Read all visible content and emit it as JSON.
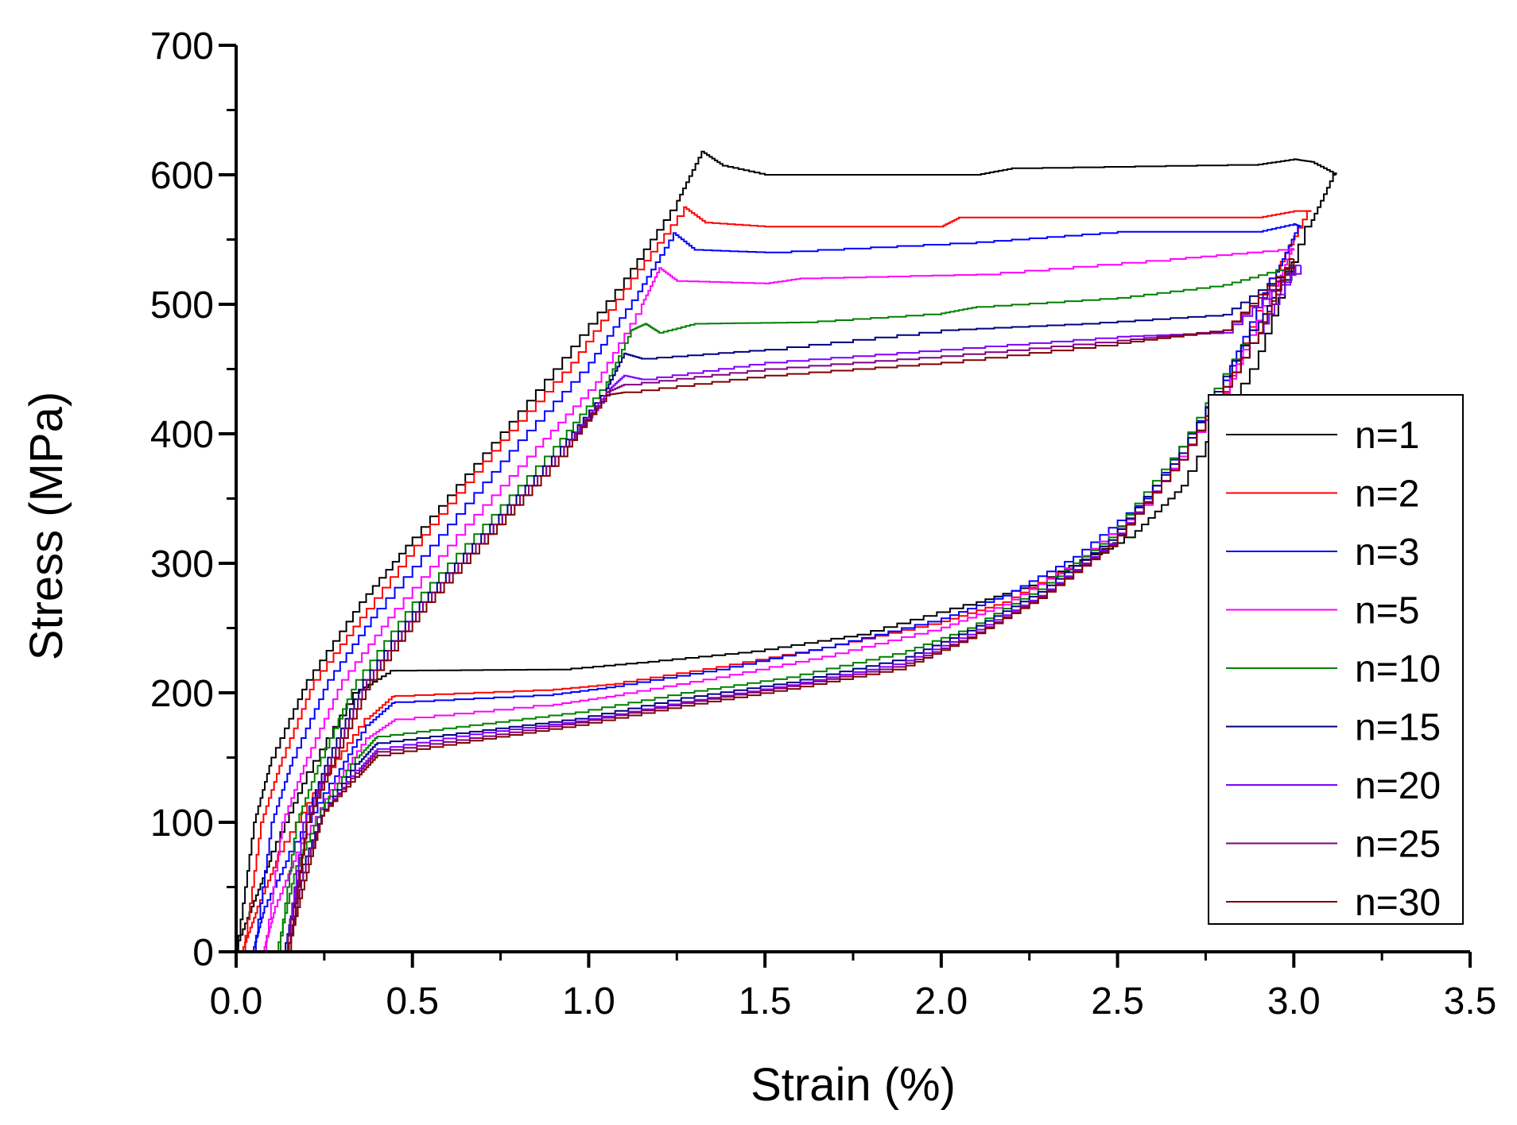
{
  "chart_data": {
    "type": "line",
    "xlabel": "Strain (%)",
    "ylabel": "Stress (MPa)",
    "xlim": [
      0,
      3.5
    ],
    "ylim": [
      0,
      700
    ],
    "x_ticks": [
      "0.0",
      "0.5",
      "1.0",
      "1.5",
      "2.0",
      "2.5",
      "3.0",
      "3.5"
    ],
    "y_ticks": [
      "0",
      "100",
      "200",
      "300",
      "400",
      "500",
      "600",
      "700"
    ],
    "legend_position": "right",
    "series": [
      {
        "name": "n=1",
        "color": "#000000",
        "loading": [
          [
            0.0,
            0
          ],
          [
            0.05,
            100
          ],
          [
            0.1,
            150
          ],
          [
            0.2,
            210
          ],
          [
            0.35,
            270
          ],
          [
            0.5,
            320
          ],
          [
            0.7,
            385
          ],
          [
            0.9,
            450
          ],
          [
            1.1,
            520
          ],
          [
            1.25,
            580
          ],
          [
            1.32,
            618
          ],
          [
            1.38,
            607
          ],
          [
            1.5,
            600
          ],
          [
            2.1,
            600
          ],
          [
            2.2,
            605
          ],
          [
            2.9,
            608
          ],
          [
            3.0,
            612
          ],
          [
            3.05,
            610
          ],
          [
            3.12,
            600
          ]
        ],
        "unloading": [
          [
            3.12,
            600
          ],
          [
            3.05,
            560
          ],
          [
            2.9,
            450
          ],
          [
            2.7,
            360
          ],
          [
            2.55,
            320
          ],
          [
            2.3,
            285
          ],
          [
            2.1,
            268
          ],
          [
            1.8,
            245
          ],
          [
            1.5,
            232
          ],
          [
            1.2,
            224
          ],
          [
            0.95,
            218
          ],
          [
            0.45,
            217
          ],
          [
            0.35,
            200
          ],
          [
            0.2,
            130
          ],
          [
            0.1,
            70
          ],
          [
            0.05,
            35
          ],
          [
            0.0,
            0
          ]
        ]
      },
      {
        "name": "n=2",
        "color": "#ff0000",
        "loading": [
          [
            0.02,
            0
          ],
          [
            0.07,
            100
          ],
          [
            0.13,
            150
          ],
          [
            0.22,
            210
          ],
          [
            0.37,
            265
          ],
          [
            0.55,
            330
          ],
          [
            0.75,
            395
          ],
          [
            0.95,
            455
          ],
          [
            1.12,
            520
          ],
          [
            1.27,
            575
          ],
          [
            1.33,
            563
          ],
          [
            1.5,
            560
          ],
          [
            2.0,
            560
          ],
          [
            2.05,
            567
          ],
          [
            2.9,
            567
          ],
          [
            3.0,
            572
          ],
          [
            3.05,
            572
          ]
        ],
        "unloading": [
          [
            3.05,
            572
          ],
          [
            2.95,
            520
          ],
          [
            2.8,
            420
          ],
          [
            2.6,
            345
          ],
          [
            2.4,
            300
          ],
          [
            2.2,
            270
          ],
          [
            2.0,
            253
          ],
          [
            1.7,
            235
          ],
          [
            1.4,
            220
          ],
          [
            1.1,
            207
          ],
          [
            0.9,
            202
          ],
          [
            0.45,
            197
          ],
          [
            0.38,
            180
          ],
          [
            0.25,
            130
          ],
          [
            0.12,
            70
          ],
          [
            0.06,
            30
          ],
          [
            0.02,
            0
          ]
        ]
      },
      {
        "name": "n=3",
        "color": "#0000ff",
        "loading": [
          [
            0.05,
            0
          ],
          [
            0.1,
            100
          ],
          [
            0.16,
            150
          ],
          [
            0.26,
            210
          ],
          [
            0.4,
            265
          ],
          [
            0.6,
            330
          ],
          [
            0.8,
            395
          ],
          [
            1.0,
            455
          ],
          [
            1.14,
            510
          ],
          [
            1.24,
            555
          ],
          [
            1.3,
            542
          ],
          [
            1.5,
            540
          ],
          [
            2.1,
            548
          ],
          [
            2.5,
            556
          ],
          [
            2.9,
            556
          ],
          [
            3.0,
            562
          ],
          [
            3.02,
            560
          ]
        ],
        "unloading": [
          [
            3.02,
            560
          ],
          [
            2.95,
            520
          ],
          [
            2.8,
            430
          ],
          [
            2.6,
            350
          ],
          [
            2.4,
            305
          ],
          [
            2.2,
            275
          ],
          [
            2.0,
            255
          ],
          [
            1.7,
            235
          ],
          [
            1.4,
            218
          ],
          [
            1.1,
            205
          ],
          [
            0.9,
            198
          ],
          [
            0.45,
            192
          ],
          [
            0.38,
            175
          ],
          [
            0.28,
            130
          ],
          [
            0.15,
            70
          ],
          [
            0.08,
            30
          ],
          [
            0.05,
            0
          ]
        ]
      },
      {
        "name": "n=5",
        "color": "#ff00ff",
        "loading": [
          [
            0.08,
            0
          ],
          [
            0.13,
            100
          ],
          [
            0.2,
            150
          ],
          [
            0.3,
            210
          ],
          [
            0.45,
            265
          ],
          [
            0.65,
            330
          ],
          [
            0.85,
            390
          ],
          [
            1.02,
            440
          ],
          [
            1.15,
            500
          ],
          [
            1.2,
            528
          ],
          [
            1.25,
            518
          ],
          [
            1.5,
            516
          ],
          [
            1.6,
            520
          ],
          [
            2.1,
            523
          ],
          [
            2.65,
            535
          ],
          [
            3.0,
            543
          ]
        ],
        "unloading": [
          [
            3.0,
            543
          ],
          [
            2.95,
            510
          ],
          [
            2.8,
            420
          ],
          [
            2.6,
            345
          ],
          [
            2.4,
            300
          ],
          [
            2.2,
            268
          ],
          [
            2.0,
            248
          ],
          [
            1.7,
            228
          ],
          [
            1.4,
            212
          ],
          [
            1.1,
            198
          ],
          [
            0.9,
            190
          ],
          [
            0.45,
            178
          ],
          [
            0.38,
            165
          ],
          [
            0.28,
            125
          ],
          [
            0.17,
            70
          ],
          [
            0.11,
            30
          ],
          [
            0.08,
            0
          ]
        ]
      },
      {
        "name": "n=10",
        "color": "#008000",
        "loading": [
          [
            0.12,
            0
          ],
          [
            0.17,
            100
          ],
          [
            0.24,
            150
          ],
          [
            0.34,
            210
          ],
          [
            0.5,
            270
          ],
          [
            0.7,
            330
          ],
          [
            0.9,
            390
          ],
          [
            1.05,
            440
          ],
          [
            1.12,
            480
          ],
          [
            1.16,
            485
          ],
          [
            1.2,
            478
          ],
          [
            1.3,
            485
          ],
          [
            1.6,
            486
          ],
          [
            2.0,
            493
          ],
          [
            2.1,
            498
          ],
          [
            2.5,
            505
          ],
          [
            2.8,
            515
          ],
          [
            3.0,
            530
          ]
        ],
        "unloading": [
          [
            3.0,
            530
          ],
          [
            2.9,
            480
          ],
          [
            2.7,
            390
          ],
          [
            2.5,
            320
          ],
          [
            2.3,
            280
          ],
          [
            2.1,
            250
          ],
          [
            1.9,
            230
          ],
          [
            1.6,
            212
          ],
          [
            1.3,
            200
          ],
          [
            1.0,
            185
          ],
          [
            0.7,
            175
          ],
          [
            0.4,
            165
          ],
          [
            0.35,
            150
          ],
          [
            0.25,
            110
          ],
          [
            0.17,
            60
          ],
          [
            0.12,
            0
          ]
        ]
      },
      {
        "name": "n=15",
        "color": "#000080",
        "loading": [
          [
            0.14,
            0
          ],
          [
            0.19,
            100
          ],
          [
            0.26,
            150
          ],
          [
            0.36,
            210
          ],
          [
            0.52,
            270
          ],
          [
            0.72,
            330
          ],
          [
            0.92,
            390
          ],
          [
            1.05,
            435
          ],
          [
            1.1,
            462
          ],
          [
            1.15,
            458
          ],
          [
            1.5,
            465
          ],
          [
            2.0,
            480
          ],
          [
            2.4,
            485
          ],
          [
            2.8,
            492
          ],
          [
            3.0,
            530
          ]
        ],
        "unloading": [
          [
            3.0,
            530
          ],
          [
            2.9,
            480
          ],
          [
            2.7,
            385
          ],
          [
            2.5,
            318
          ],
          [
            2.3,
            278
          ],
          [
            2.1,
            248
          ],
          [
            1.9,
            225
          ],
          [
            1.6,
            208
          ],
          [
            1.3,
            196
          ],
          [
            1.0,
            180
          ],
          [
            0.7,
            170
          ],
          [
            0.4,
            160
          ],
          [
            0.35,
            145
          ],
          [
            0.25,
            105
          ],
          [
            0.18,
            55
          ],
          [
            0.14,
            0
          ]
        ]
      },
      {
        "name": "n=20",
        "color": "#8000ff",
        "loading": [
          [
            0.14,
            0
          ],
          [
            0.19,
            100
          ],
          [
            0.27,
            150
          ],
          [
            0.37,
            210
          ],
          [
            0.53,
            270
          ],
          [
            0.73,
            330
          ],
          [
            0.93,
            390
          ],
          [
            1.06,
            435
          ],
          [
            1.1,
            445
          ],
          [
            1.15,
            442
          ],
          [
            1.5,
            455
          ],
          [
            2.0,
            465
          ],
          [
            2.5,
            475
          ],
          [
            2.8,
            478
          ],
          [
            3.02,
            530
          ]
        ],
        "unloading": [
          [
            3.02,
            530
          ],
          [
            2.9,
            470
          ],
          [
            2.7,
            380
          ],
          [
            2.5,
            315
          ],
          [
            2.3,
            275
          ],
          [
            2.1,
            245
          ],
          [
            1.9,
            222
          ],
          [
            1.6,
            206
          ],
          [
            1.3,
            193
          ],
          [
            1.0,
            178
          ],
          [
            0.7,
            168
          ],
          [
            0.4,
            155
          ],
          [
            0.35,
            140
          ],
          [
            0.25,
            105
          ],
          [
            0.19,
            55
          ],
          [
            0.15,
            0
          ]
        ]
      },
      {
        "name": "n=25",
        "color": "#800080",
        "loading": [
          [
            0.14,
            0
          ],
          [
            0.2,
            100
          ],
          [
            0.27,
            150
          ],
          [
            0.37,
            210
          ],
          [
            0.53,
            270
          ],
          [
            0.73,
            330
          ],
          [
            0.93,
            390
          ],
          [
            1.05,
            432
          ],
          [
            1.1,
            438
          ],
          [
            1.5,
            450
          ],
          [
            2.0,
            460
          ],
          [
            2.5,
            472
          ],
          [
            2.8,
            480
          ],
          [
            3.0,
            530
          ]
        ],
        "unloading": [
          [
            3.0,
            530
          ],
          [
            2.9,
            470
          ],
          [
            2.7,
            380
          ],
          [
            2.5,
            314
          ],
          [
            2.3,
            274
          ],
          [
            2.1,
            243
          ],
          [
            1.9,
            220
          ],
          [
            1.6,
            205
          ],
          [
            1.3,
            192
          ],
          [
            1.0,
            177
          ],
          [
            0.7,
            165
          ],
          [
            0.4,
            153
          ],
          [
            0.35,
            138
          ],
          [
            0.25,
            105
          ],
          [
            0.19,
            55
          ],
          [
            0.15,
            0
          ]
        ]
      },
      {
        "name": "n=30",
        "color": "#800000",
        "loading": [
          [
            0.15,
            0
          ],
          [
            0.2,
            100
          ],
          [
            0.28,
            150
          ],
          [
            0.38,
            210
          ],
          [
            0.54,
            270
          ],
          [
            0.74,
            330
          ],
          [
            0.94,
            390
          ],
          [
            1.05,
            430
          ],
          [
            1.1,
            432
          ],
          [
            1.5,
            445
          ],
          [
            2.0,
            455
          ],
          [
            2.5,
            470
          ],
          [
            2.8,
            480
          ],
          [
            3.0,
            535
          ]
        ],
        "unloading": [
          [
            3.0,
            535
          ],
          [
            2.9,
            470
          ],
          [
            2.7,
            380
          ],
          [
            2.5,
            313
          ],
          [
            2.3,
            273
          ],
          [
            2.1,
            242
          ],
          [
            1.9,
            218
          ],
          [
            1.6,
            203
          ],
          [
            1.3,
            190
          ],
          [
            1.0,
            175
          ],
          [
            0.7,
            163
          ],
          [
            0.4,
            150
          ],
          [
            0.35,
            135
          ],
          [
            0.25,
            105
          ],
          [
            0.2,
            55
          ],
          [
            0.15,
            0
          ]
        ]
      }
    ]
  }
}
